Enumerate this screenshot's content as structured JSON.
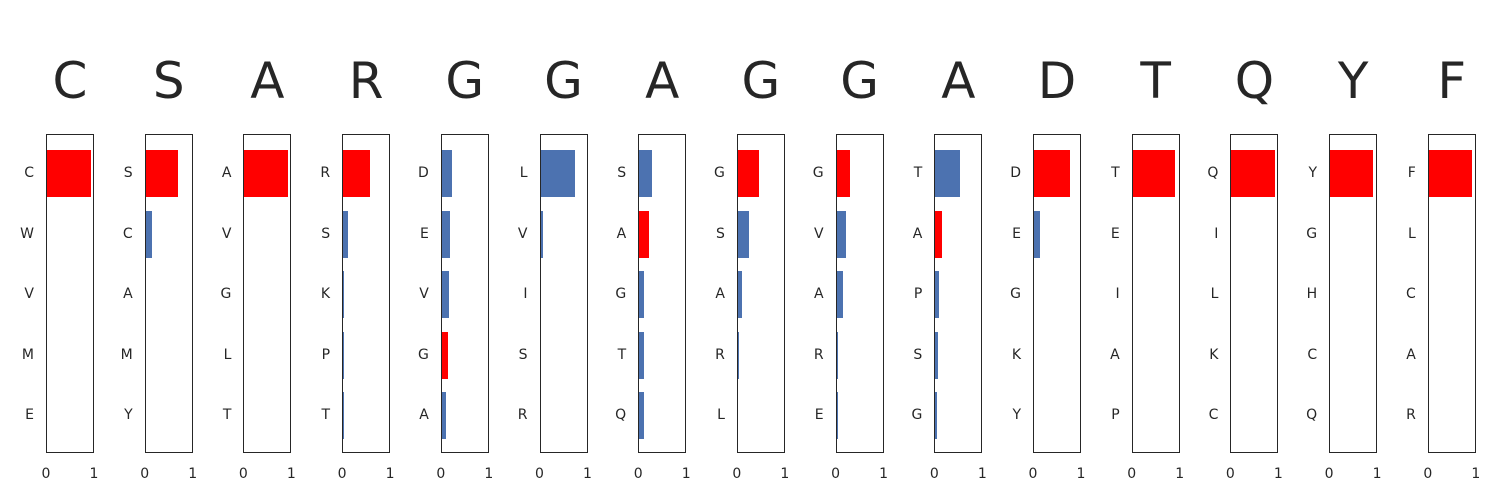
{
  "chart_data": {
    "type": "bar",
    "orientation": "horizontal",
    "xlim": [
      0,
      1
    ],
    "x_ticks": [
      "0",
      "1"
    ],
    "colors": {
      "highlight": "#ff0000",
      "default": "#4c72b0"
    },
    "panels": [
      {
        "title": "C",
        "categories": [
          "C",
          "W",
          "V",
          "M",
          "E"
        ],
        "values": [
          0.92,
          0,
          0,
          0,
          0
        ],
        "highlight_index": 0
      },
      {
        "title": "S",
        "categories": [
          "S",
          "C",
          "A",
          "M",
          "Y"
        ],
        "values": [
          0.67,
          0.14,
          0,
          0,
          0
        ],
        "highlight_index": 0
      },
      {
        "title": "A",
        "categories": [
          "A",
          "V",
          "G",
          "L",
          "T"
        ],
        "values": [
          0.9,
          0,
          0,
          0,
          0
        ],
        "highlight_index": 0
      },
      {
        "title": "R",
        "categories": [
          "R",
          "S",
          "K",
          "P",
          "T"
        ],
        "values": [
          0.57,
          0.11,
          0.02,
          0.01,
          0.01
        ],
        "highlight_index": 0
      },
      {
        "title": "G",
        "categories": [
          "D",
          "E",
          "V",
          "G",
          "A"
        ],
        "values": [
          0.21,
          0.17,
          0.14,
          0.13,
          0.08
        ],
        "highlight_index": 3
      },
      {
        "title": "G",
        "categories": [
          "L",
          "V",
          "I",
          "S",
          "R"
        ],
        "values": [
          0.71,
          0.05,
          0,
          0,
          0
        ],
        "highlight_index": null
      },
      {
        "title": "A",
        "categories": [
          "S",
          "A",
          "G",
          "T",
          "Q"
        ],
        "values": [
          0.26,
          0.21,
          0.09,
          0.09,
          0.09
        ],
        "highlight_index": 1
      },
      {
        "title": "G",
        "categories": [
          "G",
          "S",
          "A",
          "R",
          "L"
        ],
        "values": [
          0.44,
          0.23,
          0.09,
          0.02,
          0
        ],
        "highlight_index": 0
      },
      {
        "title": "G",
        "categories": [
          "G",
          "V",
          "A",
          "R",
          "E"
        ],
        "values": [
          0.28,
          0.2,
          0.13,
          0.02,
          0.02
        ],
        "highlight_index": 0
      },
      {
        "title": "A",
        "categories": [
          "T",
          "A",
          "P",
          "S",
          "G"
        ],
        "values": [
          0.51,
          0.13,
          0.08,
          0.06,
          0.03
        ],
        "highlight_index": 1
      },
      {
        "title": "D",
        "categories": [
          "D",
          "E",
          "G",
          "K",
          "Y"
        ],
        "values": [
          0.75,
          0.13,
          0,
          0,
          0
        ],
        "highlight_index": 0
      },
      {
        "title": "T",
        "categories": [
          "T",
          "E",
          "I",
          "A",
          "P"
        ],
        "values": [
          0.88,
          0,
          0,
          0,
          0
        ],
        "highlight_index": 0
      },
      {
        "title": "Q",
        "categories": [
          "Q",
          "I",
          "L",
          "K",
          "C"
        ],
        "values": [
          0.9,
          0,
          0,
          0,
          0
        ],
        "highlight_index": 0
      },
      {
        "title": "Y",
        "categories": [
          "Y",
          "G",
          "H",
          "C",
          "Q"
        ],
        "values": [
          0.9,
          0,
          0,
          0,
          0
        ],
        "highlight_index": 0
      },
      {
        "title": "F",
        "categories": [
          "F",
          "L",
          "C",
          "A",
          "R"
        ],
        "values": [
          0.9,
          0,
          0,
          0,
          0
        ],
        "highlight_index": 0
      }
    ]
  }
}
